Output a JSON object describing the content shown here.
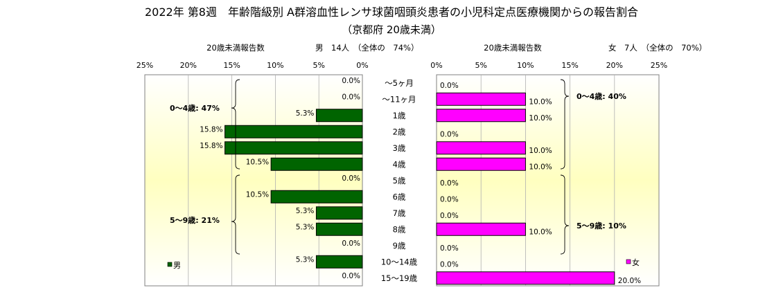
{
  "title": "2022年 第8週　年齢階級別 A群溶血性レンサ球菌咽頭炎患者の小児科定点医療機関からの報告割合",
  "subtitle": "（京都府 20歳未満）",
  "male_header": {
    "axis_label": "20歳未満報告数",
    "summary": "男　14人　（全体の　74%）"
  },
  "female_header": {
    "axis_label": "20歳未満報告数",
    "summary": "女　7人　（全体の　70%）"
  },
  "legend": {
    "male": "男",
    "female": "女"
  },
  "groups": {
    "male_0_4": "0～4歳: 47%",
    "male_5_9": "5～9歳: 21%",
    "female_0_4": "0～4歳: 40%",
    "female_5_9": "5～9歳: 10%"
  },
  "colors": {
    "male": "#006400",
    "female": "#ff00ff",
    "plot_bg_edge": "#ffffff",
    "plot_bg_mid": "#ffffc0"
  },
  "chart_data": {
    "type": "bar",
    "orientation": "horizontal-pyramid",
    "categories": [
      "～5ヶ月",
      "～11ヶ月",
      "1歳",
      "2歳",
      "3歳",
      "4歳",
      "5歳",
      "6歳",
      "7歳",
      "8歳",
      "9歳",
      "10～14歳",
      "15～19歳"
    ],
    "x_ticks": [
      "25%",
      "20%",
      "15%",
      "10%",
      "5%",
      "0%"
    ],
    "x_ticks_female": [
      "0%",
      "5%",
      "10%",
      "15%",
      "20%",
      "25%"
    ],
    "xlim": [
      0,
      25
    ],
    "series": [
      {
        "name": "男",
        "values": [
          0.0,
          0.0,
          5.3,
          15.8,
          15.8,
          10.5,
          0.0,
          10.5,
          5.3,
          5.3,
          0.0,
          5.3,
          0.0
        ],
        "labels": [
          "0.0%",
          "0.0%",
          "5.3%",
          "15.8%",
          "15.8%",
          "10.5%",
          "0.0%",
          "10.5%",
          "5.3%",
          "5.3%",
          "0.0%",
          "5.3%",
          "0.0%"
        ]
      },
      {
        "name": "女",
        "values": [
          0.0,
          10.0,
          10.0,
          0.0,
          10.0,
          10.0,
          0.0,
          0.0,
          0.0,
          10.0,
          0.0,
          0.0,
          20.0
        ],
        "labels": [
          "0.0%",
          "10.0%",
          "10.0%",
          "0.0%",
          "10.0%",
          "10.0%",
          "0.0%",
          "0.0%",
          "0.0%",
          "10.0%",
          "0.0%",
          "0.0%",
          "20.0%"
        ]
      }
    ],
    "grid": true
  }
}
